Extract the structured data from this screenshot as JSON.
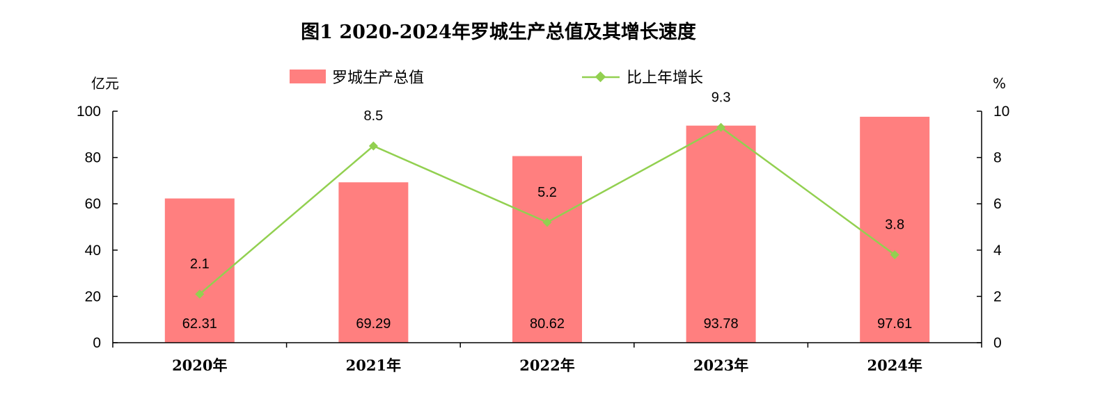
{
  "chart_data": {
    "type": "bar",
    "title": "图1  2020-2024年罗城生产总值及其增长速度",
    "categories": [
      "2020年",
      "2021年",
      "2022年",
      "2023年",
      "2024年"
    ],
    "series": [
      {
        "name": "罗城生产总值",
        "type": "bar",
        "axis": "left",
        "values": [
          62.31,
          69.29,
          80.62,
          93.78,
          97.61
        ],
        "color": "#ff7f7f"
      },
      {
        "name": "比上年增长",
        "type": "line",
        "axis": "right",
        "values": [
          2.1,
          8.5,
          5.2,
          9.3,
          3.8
        ],
        "color": "#92d050"
      }
    ],
    "bar_labels": [
      "62.31",
      "69.29",
      "80.62",
      "93.78",
      "97.61"
    ],
    "line_labels": [
      "2.1",
      "8.5",
      "5.2",
      "9.3",
      "3.8"
    ],
    "ylabel": "亿元",
    "ylabel_right": "%",
    "ylim": [
      0,
      100
    ],
    "ylim_right": [
      0,
      10
    ],
    "yticks": [
      "0",
      "20",
      "40",
      "60",
      "80",
      "100"
    ],
    "yticks_right": [
      "0",
      "2",
      "4",
      "6",
      "8",
      "10"
    ],
    "grid": false,
    "legend_position": "top"
  }
}
